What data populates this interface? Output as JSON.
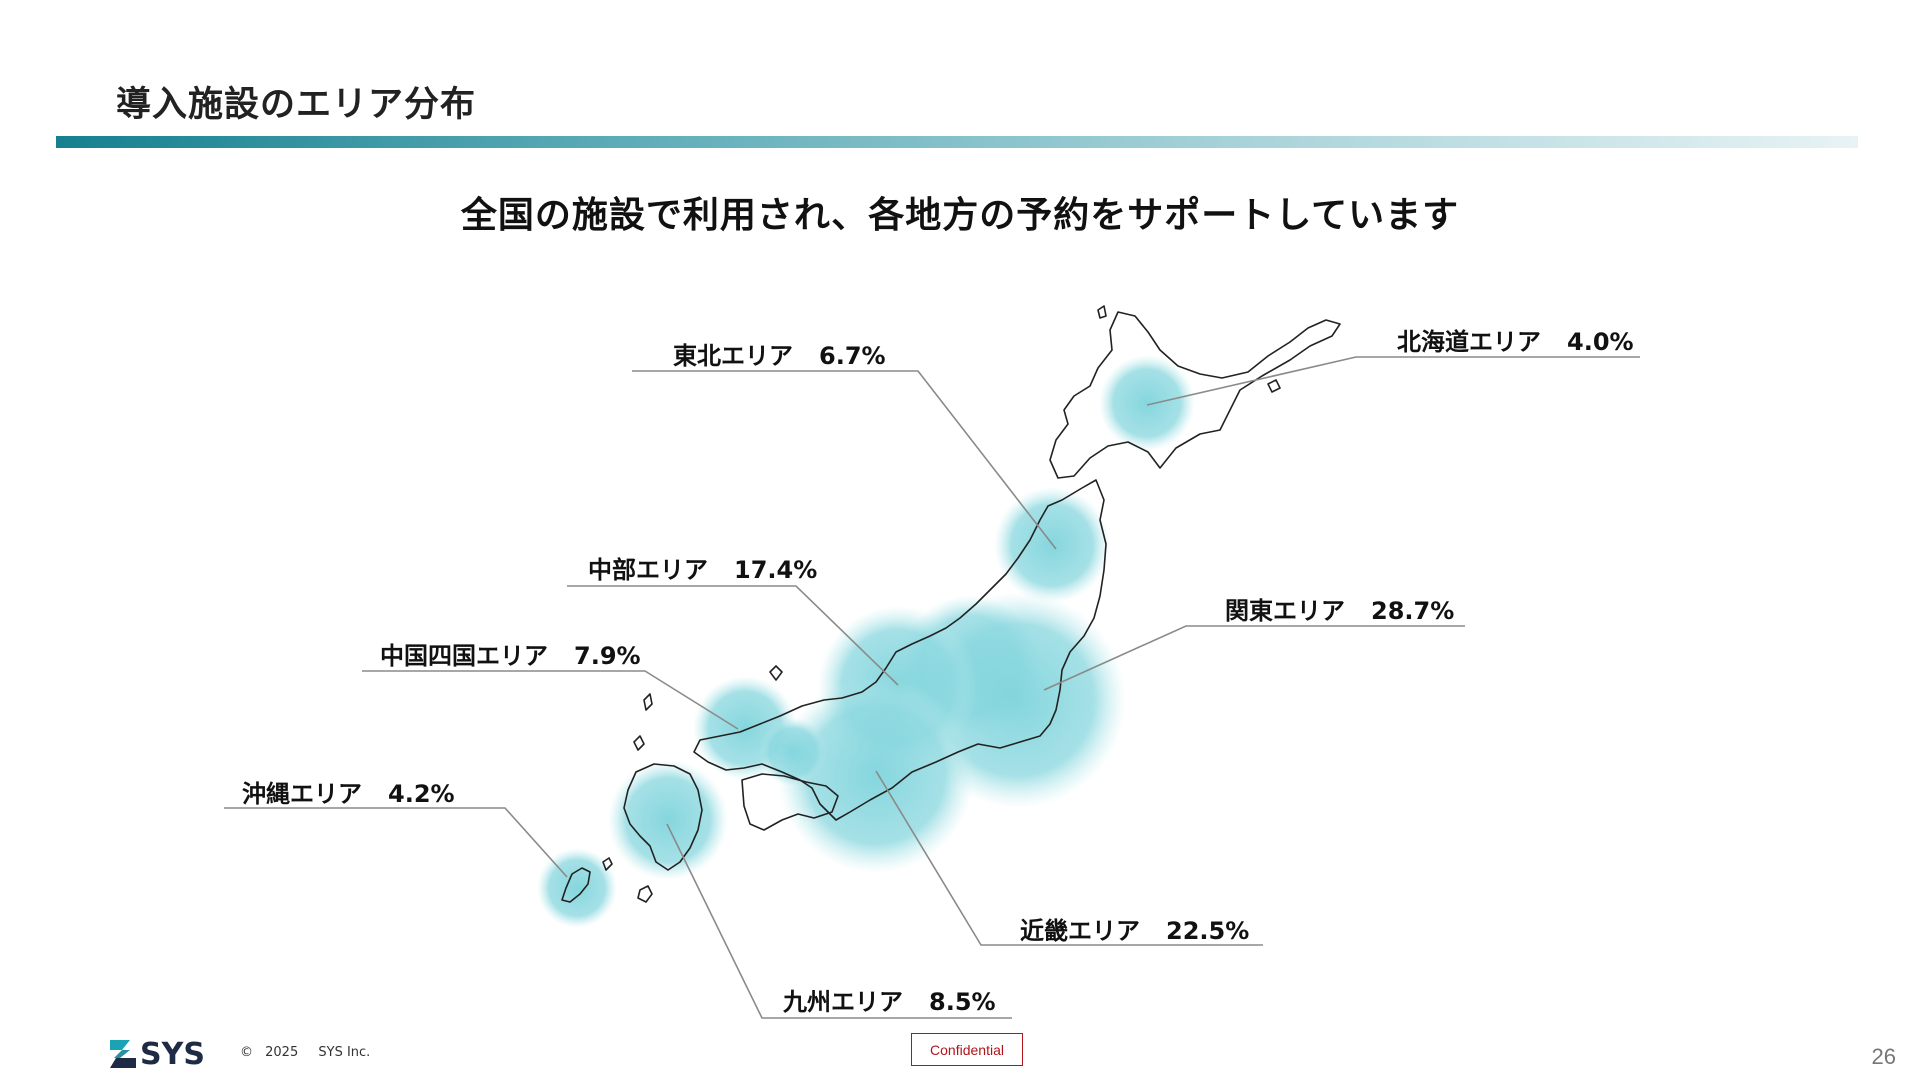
{
  "slide": {
    "title": "導入施設のエリア分布",
    "subtitle": "全国の施設で利用され、各地方の予約をサポートしています"
  },
  "regions": [
    {
      "id": "hokkaido",
      "name": "北海道エリア",
      "percent": "4.0%"
    },
    {
      "id": "tohoku",
      "name": "東北エリア",
      "percent": "6.7%"
    },
    {
      "id": "kanto",
      "name": "関東エリア",
      "percent": "28.7%"
    },
    {
      "id": "chubu",
      "name": "中部エリア",
      "percent": "17.4%"
    },
    {
      "id": "kinki",
      "name": "近畿エリア",
      "percent": "22.5%"
    },
    {
      "id": "chugoku_shikoku",
      "name": "中国四国エリア",
      "percent": "7.9%"
    },
    {
      "id": "kyushu",
      "name": "九州エリア",
      "percent": "8.5%"
    },
    {
      "id": "okinawa",
      "name": "沖縄エリア",
      "percent": "4.2%"
    }
  ],
  "footer": {
    "logo_text": "SYS",
    "copyright_symbol": "©",
    "year": "2025",
    "company": "SYS Inc.",
    "confidential": "Confidential",
    "page_number": "26"
  },
  "colors": {
    "accent": "#16808f",
    "bubble": "#7fd4dc",
    "confidential": "#b3131b"
  }
}
